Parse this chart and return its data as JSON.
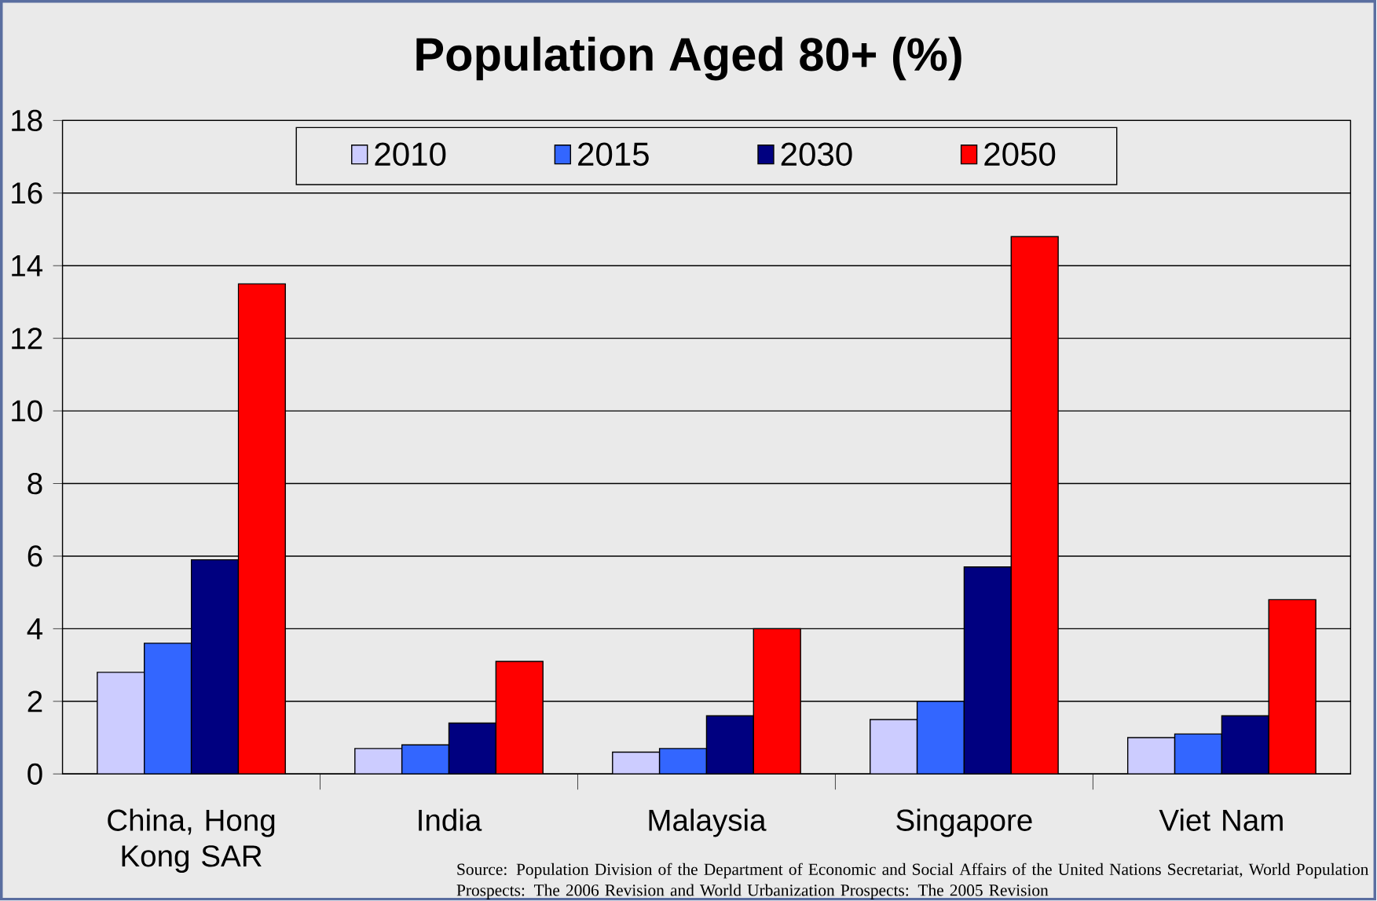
{
  "chart_data": {
    "type": "bar",
    "title": "Population Aged 80+ (%)",
    "categories": [
      "China, Hong Kong SAR",
      "India",
      "Malaysia",
      "Singapore",
      "Viet Nam"
    ],
    "series": [
      {
        "name": "2010",
        "color": "#ccccff",
        "values": [
          2.8,
          0.7,
          0.6,
          1.5,
          1.0
        ]
      },
      {
        "name": "2015",
        "color": "#3366ff",
        "values": [
          3.6,
          0.8,
          0.7,
          2.0,
          1.1
        ]
      },
      {
        "name": "2030",
        "color": "#000080",
        "values": [
          5.9,
          1.4,
          1.6,
          5.7,
          1.6
        ]
      },
      {
        "name": "2050",
        "color": "#ff0000",
        "values": [
          13.5,
          3.1,
          4.0,
          14.8,
          4.8
        ]
      }
    ],
    "ylim": [
      0,
      18
    ],
    "yticks": [
      0,
      2,
      4,
      6,
      8,
      10,
      12,
      14,
      16,
      18
    ],
    "grid": "y",
    "legend": "top",
    "annotations": [
      "Source: Population Division of the Department of Economic and Social Affairs of the United Nations Secretariat, World Population Prospects: The 2006 Revision and World Urbanization Prospects: The 2005 Revision"
    ]
  }
}
